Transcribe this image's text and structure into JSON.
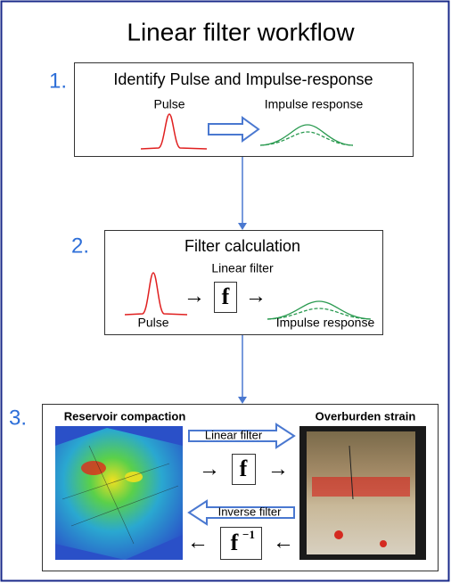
{
  "title": "Linear filter workflow",
  "steps": [
    {
      "number": "1.",
      "title": "Identify Pulse and Impulse-response",
      "pulse_label": "Pulse",
      "response_label": "Impulse response"
    },
    {
      "number": "2.",
      "title": "Filter calculation",
      "filter_label": "Linear filter",
      "filter_symbol": "f",
      "pulse_label": "Pulse",
      "response_label": "Impulse response"
    },
    {
      "number": "3.",
      "left_label": "Reservoir compaction",
      "right_label": "Overburden strain",
      "forward_label": "Linear filter",
      "forward_symbol": "f",
      "inverse_label": "Inverse filter",
      "inverse_symbol": "f",
      "inverse_exponent": "−1"
    }
  ]
}
